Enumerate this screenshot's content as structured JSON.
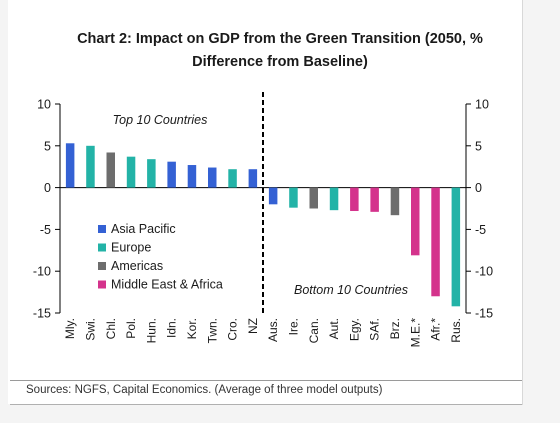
{
  "title_line1": "Chart 2: Impact on GDP from the Green Transition (2050, %",
  "title_line2": "Difference from Baseline)",
  "source": "Sources: NGFS, Capital Economics. (Average of three model outputs)",
  "colors": {
    "Asia Pacific": "#3461d4",
    "Europe": "#23b3a7",
    "Americas": "#6d6d6d",
    "Middle East & Africa": "#d4338c"
  },
  "chart_data": {
    "type": "bar",
    "title": "Chart 2: Impact on GDP from the Green Transition (2050, % Difference from Baseline)",
    "ylim": [
      -15,
      10
    ],
    "yticks": [
      10,
      5,
      0,
      -5,
      -10,
      -15
    ],
    "grid": false,
    "legend_position": "left-middle",
    "legend": [
      "Asia Pacific",
      "Europe",
      "Americas",
      "Middle East & Africa"
    ],
    "annotations": [
      "Top 10 Countries",
      "Bottom 10 Countries"
    ],
    "categories": [
      "Mly.",
      "Swi.",
      "Chl.",
      "Pol.",
      "Hun.",
      "Idn.",
      "Kor.",
      "Twn.",
      "Cro.",
      "NZ",
      "Aus.",
      "Ire.",
      "Can.",
      "Aut.",
      "Egy.",
      "SAf.",
      "Brz.",
      "M.E.*",
      "Afr.*",
      "Rus."
    ],
    "values": [
      5.3,
      5.0,
      4.2,
      3.7,
      3.4,
      3.1,
      2.7,
      2.4,
      2.2,
      2.2,
      -2.0,
      -2.4,
      -2.5,
      -2.7,
      -2.8,
      -2.9,
      -3.3,
      -8.1,
      -13.0,
      -14.2
    ],
    "groups": [
      "Asia Pacific",
      "Europe",
      "Americas",
      "Europe",
      "Europe",
      "Asia Pacific",
      "Asia Pacific",
      "Asia Pacific",
      "Europe",
      "Asia Pacific",
      "Asia Pacific",
      "Europe",
      "Americas",
      "Europe",
      "Middle East & Africa",
      "Middle East & Africa",
      "Americas",
      "Middle East & Africa",
      "Middle East & Africa",
      "Europe"
    ]
  }
}
